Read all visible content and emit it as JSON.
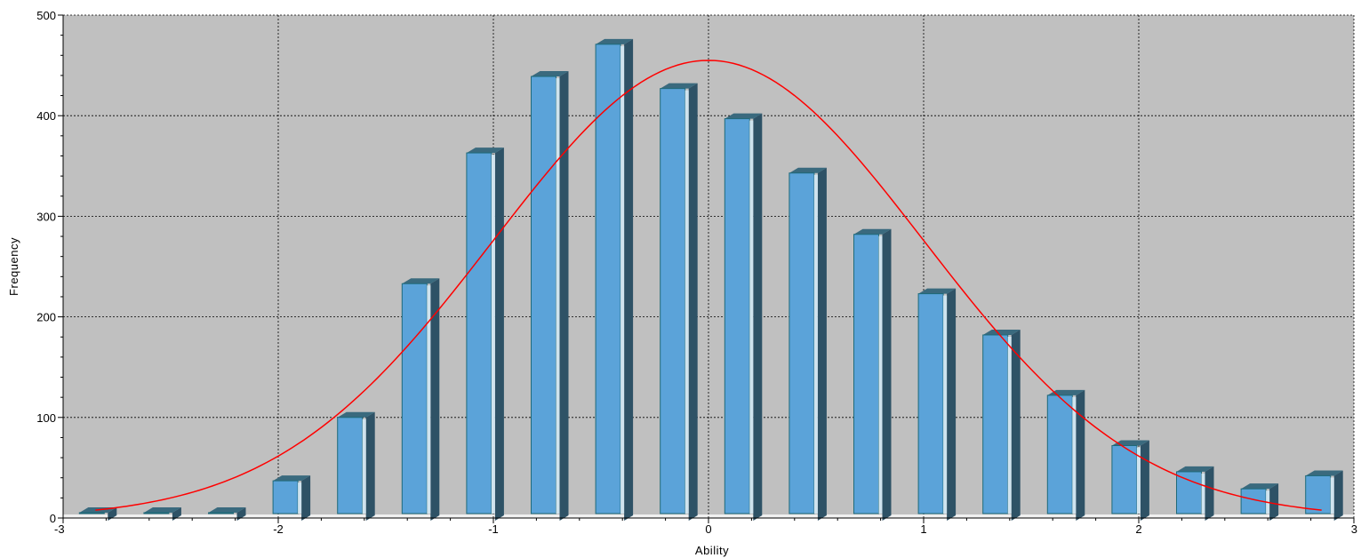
{
  "chart_data": {
    "type": "bar",
    "title": "",
    "xlabel": "Ability",
    "ylabel": "Frequency",
    "xlim": [
      -3,
      3
    ],
    "ylim": [
      0,
      500
    ],
    "x_ticks": [
      -3,
      -2,
      -1,
      0,
      1,
      2,
      3
    ],
    "y_ticks": [
      0,
      100,
      200,
      300,
      400,
      500
    ],
    "grid": true,
    "legend": "none",
    "bar_style": "3d",
    "colors": {
      "plot_background": "#c0c0c0",
      "bar_front": "#5ba3d9",
      "bar_side": "#2e5266",
      "bar_top": "#3a6a7e",
      "curve": "#ff0000",
      "grid": "#000000"
    },
    "series": [
      {
        "values": [
          {
            "x": -2.85,
            "y": 0
          },
          {
            "x": -2.55,
            "y": 0
          },
          {
            "x": -2.25,
            "y": 3
          },
          {
            "x": -1.95,
            "y": 37
          },
          {
            "x": -1.65,
            "y": 100
          },
          {
            "x": -1.35,
            "y": 233
          },
          {
            "x": -1.05,
            "y": 363
          },
          {
            "x": -0.75,
            "y": 439
          },
          {
            "x": -0.45,
            "y": 471
          },
          {
            "x": -0.15,
            "y": 427
          },
          {
            "x": 0.15,
            "y": 397
          },
          {
            "x": 0.45,
            "y": 343
          },
          {
            "x": 0.75,
            "y": 282
          },
          {
            "x": 1.05,
            "y": 223
          },
          {
            "x": 1.35,
            "y": 182
          },
          {
            "x": 1.65,
            "y": 122
          },
          {
            "x": 1.95,
            "y": 72
          },
          {
            "x": 2.25,
            "y": 46
          },
          {
            "x": 2.55,
            "y": 29
          },
          {
            "x": 2.85,
            "y": 42
          }
        ]
      }
    ],
    "curve": {
      "type": "normal",
      "mean": 0,
      "sd": 1,
      "peak": 455,
      "x_range": [
        -2.85,
        2.85
      ]
    }
  }
}
